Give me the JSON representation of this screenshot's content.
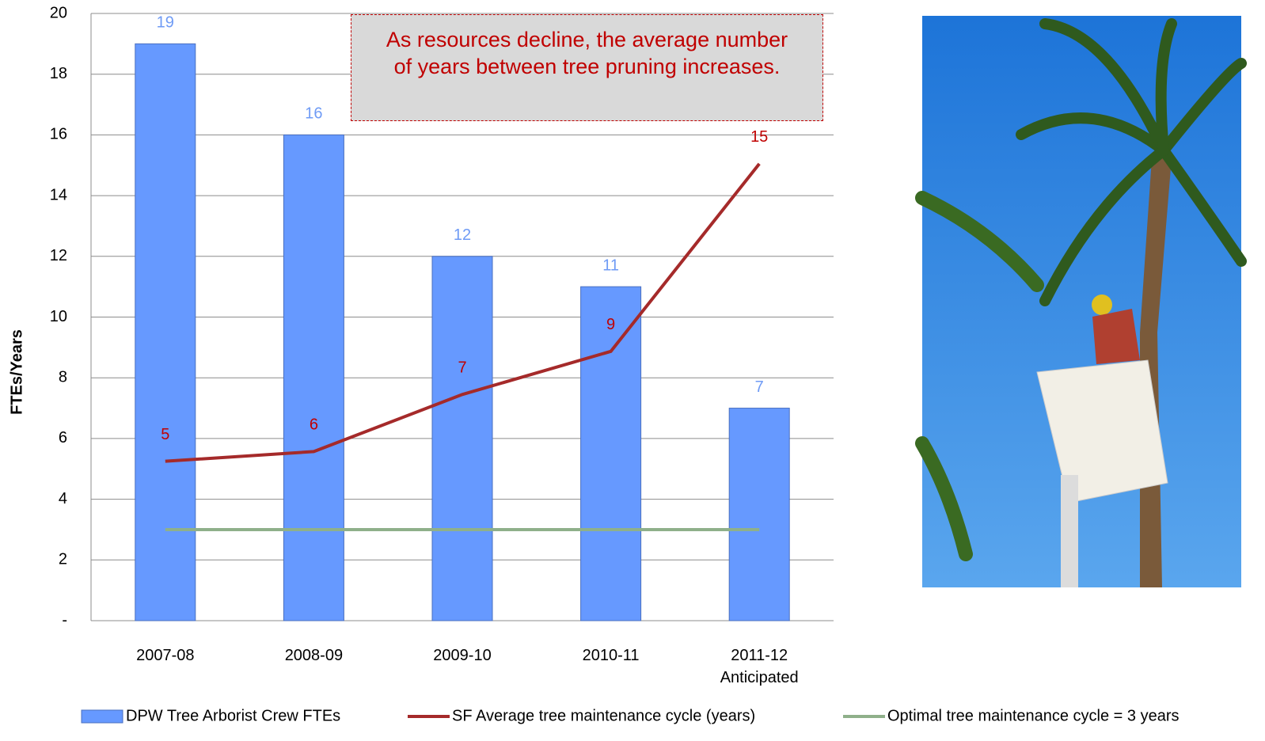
{
  "chart_data": {
    "type": "bar",
    "annotation": "As resources decline, the average number of years between tree pruning increases.",
    "y_label": "FTEs/Years",
    "categories": [
      "2007-08",
      "2008-09",
      "2009-10",
      "2010-11",
      "2011-12\nAnticipated"
    ],
    "ylim": [
      0,
      20
    ],
    "yticks": [
      {
        "value": 0,
        "label": "-"
      },
      2,
      4,
      6,
      8,
      10,
      12,
      14,
      16,
      18,
      20
    ],
    "grid": true,
    "series": [
      {
        "name": "DPW Tree Arborist Crew FTEs",
        "type": "bar",
        "color": "#6699ff",
        "label_color": "#6f9bf5",
        "values": [
          19,
          16,
          12,
          11,
          7
        ]
      },
      {
        "name": "SF Average tree maintenance cycle (years)",
        "type": "line",
        "color": "#a52a2a",
        "label_color": "#c00000",
        "values": [
          5.25,
          5.57,
          7.45,
          8.87,
          15.05
        ],
        "value_labels": [
          "5",
          "6",
          "7",
          "9",
          "15"
        ]
      },
      {
        "name": "Optimal tree maintenance cycle = 3 years",
        "type": "line",
        "color": "#8fb08a",
        "values": [
          3,
          3,
          3,
          3,
          3
        ]
      }
    ]
  }
}
